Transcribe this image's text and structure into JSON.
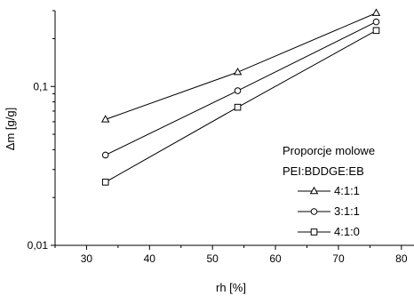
{
  "chart_data": {
    "type": "line",
    "title": "",
    "xlabel": "rh [%]",
    "ylabel": "Δm [g/g]",
    "xlim": [
      25,
      82
    ],
    "ylim": [
      0.01,
      0.3
    ],
    "yscale": "log",
    "x_ticks": [
      30,
      40,
      50,
      60,
      70,
      80
    ],
    "y_ticks": [
      {
        "value": 0.1,
        "label": "0,1"
      },
      {
        "value": 0.01,
        "label": "0,01"
      }
    ],
    "grid": false,
    "legend": {
      "placement": "right",
      "title_lines": [
        "Proporcje molowe",
        "PEI:BDDGE:EB"
      ]
    },
    "series": [
      {
        "name": "4:1:1",
        "marker": "triangle",
        "x": [
          33,
          54,
          76
        ],
        "y": [
          0.062,
          0.123,
          0.29
        ]
      },
      {
        "name": "3:1:1",
        "marker": "circle",
        "x": [
          33,
          54,
          76
        ],
        "y": [
          0.037,
          0.094,
          0.255
        ]
      },
      {
        "name": "4:1:0",
        "marker": "square",
        "x": [
          33,
          54,
          76
        ],
        "y": [
          0.025,
          0.074,
          0.225
        ]
      }
    ]
  }
}
